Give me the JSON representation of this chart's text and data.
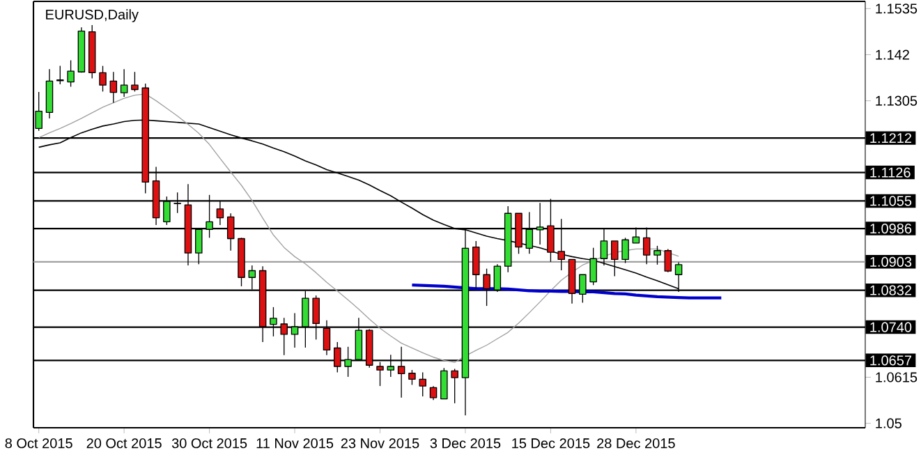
{
  "chart_data": {
    "type": "candlestick",
    "title": "EURUSD,Daily",
    "categories": [
      "8 Oct 2015",
      null,
      null,
      null,
      null,
      null,
      null,
      null,
      "20 Oct 2015",
      null,
      null,
      null,
      null,
      null,
      null,
      null,
      "30 Oct 2015",
      null,
      null,
      null,
      null,
      null,
      null,
      null,
      "11 Nov 2015",
      null,
      null,
      null,
      null,
      null,
      null,
      null,
      "23 Nov 2015",
      null,
      null,
      null,
      null,
      null,
      null,
      null,
      "3 Dec 2015",
      null,
      null,
      null,
      null,
      null,
      null,
      null,
      "15 Dec 2015",
      null,
      null,
      null,
      null,
      null,
      null,
      null,
      "28 Dec 2015",
      null,
      null,
      null,
      null,
      null,
      null,
      null,
      null,
      null,
      null,
      null,
      null,
      null,
      null,
      null,
      null,
      null,
      null,
      null,
      null,
      null
    ],
    "ohlc": [
      [
        1.1236,
        1.1327,
        1.123,
        1.1279
      ],
      [
        1.1276,
        1.1384,
        1.1261,
        1.1354
      ],
      [
        1.1355,
        1.1392,
        1.1346,
        1.1357
      ],
      [
        1.1352,
        1.1406,
        1.134,
        1.1379
      ],
      [
        1.1377,
        1.1488,
        1.1375,
        1.1479
      ],
      [
        1.1477,
        1.1494,
        1.1361,
        1.1375
      ],
      [
        1.1375,
        1.1392,
        1.1328,
        1.1344
      ],
      [
        1.1354,
        1.1377,
        1.13,
        1.1326
      ],
      [
        1.1325,
        1.1384,
        1.1315,
        1.1344
      ],
      [
        1.1344,
        1.1377,
        1.1328,
        1.1333
      ],
      [
        1.1337,
        1.1348,
        1.1074,
        1.1102
      ],
      [
        1.1105,
        1.114,
        1.0995,
        1.1013
      ],
      [
        1.1003,
        1.1066,
        1.0995,
        1.1054
      ],
      [
        1.1048,
        1.1076,
        1.1025,
        1.1049
      ],
      [
        1.1045,
        1.1097,
        1.0894,
        1.0925
      ],
      [
        1.0925,
        1.0984,
        1.0897,
        1.0984
      ],
      [
        1.0984,
        1.107,
        1.0963,
        1.1003
      ],
      [
        1.1035,
        1.1054,
        1.0995,
        1.1013
      ],
      [
        1.1015,
        1.1024,
        1.0931,
        1.0961
      ],
      [
        1.0961,
        1.0963,
        1.0842,
        1.0864
      ],
      [
        1.0864,
        1.0894,
        1.0834,
        1.0881
      ],
      [
        1.0881,
        1.0892,
        1.0703,
        1.0741
      ],
      [
        1.0747,
        1.079,
        1.0717,
        1.0762
      ],
      [
        1.0748,
        1.0763,
        1.067,
        1.0722
      ],
      [
        1.0722,
        1.0775,
        1.0689,
        1.0741
      ],
      [
        1.0741,
        1.083,
        1.0689,
        1.0812
      ],
      [
        1.0812,
        1.0819,
        1.0709,
        1.0749
      ],
      [
        1.0737,
        1.0757,
        1.067,
        1.0683
      ],
      [
        1.0688,
        1.0703,
        1.0627,
        1.0642
      ],
      [
        1.0642,
        1.0691,
        1.0616,
        1.0659
      ],
      [
        1.0659,
        1.0763,
        1.0656,
        1.0732
      ],
      [
        1.0732,
        1.0735,
        1.0639,
        1.0645
      ],
      [
        1.0642,
        1.0653,
        1.0593,
        1.0633
      ],
      [
        1.0633,
        1.0671,
        1.0616,
        1.0642
      ],
      [
        1.0642,
        1.0691,
        1.0564,
        1.0624
      ],
      [
        1.0625,
        1.0633,
        1.0596,
        1.061
      ],
      [
        1.061,
        1.0627,
        1.0567,
        1.0593
      ],
      [
        1.0589,
        1.0593,
        1.0558,
        1.0564
      ],
      [
        1.0561,
        1.0638,
        1.0561,
        1.0631
      ],
      [
        1.0631,
        1.0636,
        1.055,
        1.0614
      ],
      [
        1.0614,
        1.0984,
        1.052,
        1.0937
      ],
      [
        1.094,
        1.0955,
        1.0836,
        1.0871
      ],
      [
        1.0871,
        1.0886,
        1.0793,
        1.0836
      ],
      [
        1.0833,
        1.0897,
        1.0828,
        1.0892
      ],
      [
        1.0892,
        1.1042,
        1.0877,
        1.1024
      ],
      [
        1.1024,
        1.1024,
        1.0923,
        1.094
      ],
      [
        1.0937,
        1.1027,
        1.0923,
        1.0984
      ],
      [
        1.0983,
        1.105,
        1.0946,
        1.099
      ],
      [
        1.0993,
        1.106,
        1.0903,
        1.0927
      ],
      [
        1.0929,
        1.101,
        1.0882,
        1.0909
      ],
      [
        1.0909,
        1.0909,
        1.0799,
        1.0824
      ],
      [
        1.0822,
        1.0871,
        1.0801,
        1.0871
      ],
      [
        1.0853,
        1.0938,
        1.0845,
        1.0911
      ],
      [
        1.0911,
        1.0987,
        1.0894,
        1.0955
      ],
      [
        1.0955,
        1.0955,
        1.0867,
        1.0909
      ],
      [
        1.0909,
        1.0963,
        1.09,
        1.0958
      ],
      [
        1.095,
        1.0989,
        1.095,
        1.0965
      ],
      [
        1.0963,
        1.0989,
        1.0897,
        1.092
      ],
      [
        1.092,
        1.0943,
        1.0896,
        1.0931
      ],
      [
        1.0931,
        1.0935,
        1.0877,
        1.088
      ],
      [
        1.0871,
        1.0902,
        1.0828,
        1.0896
      ],
      null,
      null,
      null,
      null,
      null,
      null,
      null,
      null,
      null,
      null,
      null,
      null,
      null,
      null,
      null,
      null,
      null
    ],
    "colors": [
      "#33dd33",
      "#33dd33",
      "#000000",
      "#33dd33",
      "#33dd33",
      "#dd1111",
      "#dd1111",
      "#dd1111",
      "#33dd33",
      "#dd1111",
      "#dd1111",
      "#dd1111",
      "#33dd33",
      "#000000",
      "#dd1111",
      "#33dd33",
      "#33dd33",
      "#dd1111",
      "#dd1111",
      "#dd1111",
      "#33dd33",
      "#dd1111",
      "#33dd33",
      "#dd1111",
      "#33dd33",
      "#33dd33",
      "#dd1111",
      "#dd1111",
      "#dd1111",
      "#33dd33",
      "#33dd33",
      "#dd1111",
      "#dd1111",
      "#33dd33",
      "#dd1111",
      "#dd1111",
      "#dd1111",
      "#dd1111",
      "#33dd33",
      "#dd1111",
      "#33dd33",
      "#dd1111",
      "#dd1111",
      "#33dd33",
      "#33dd33",
      "#dd1111",
      "#33dd33",
      "#33dd33",
      "#dd1111",
      "#dd1111",
      "#dd1111",
      "#33dd33",
      "#33dd33",
      "#33dd33",
      "#dd1111",
      "#33dd33",
      "#33dd33",
      "#dd1111",
      "#33dd33",
      "#dd1111",
      "#33dd33",
      null,
      null,
      null,
      null,
      null,
      null,
      null,
      null,
      null,
      null,
      null,
      null,
      null,
      null,
      null,
      null,
      null
    ],
    "series": [
      {
        "type": "line",
        "color": "#000000",
        "values": [
          1.1189,
          1.1195,
          1.12,
          1.1213,
          1.1225,
          1.1234,
          1.1242,
          1.1247,
          1.1253,
          1.1256,
          1.1257,
          1.1255,
          1.1253,
          1.1251,
          1.1249,
          1.1247,
          1.1238,
          1.1229,
          1.122,
          1.1212,
          1.1205,
          1.1197,
          1.1187,
          1.1178,
          1.1167,
          1.1155,
          1.1145,
          1.1133,
          1.1125,
          1.1116,
          1.1107,
          1.1095,
          1.1081,
          1.1068,
          1.1052,
          1.1037,
          1.1021,
          1.1007,
          1.0996,
          1.0986,
          1.0983,
          1.0975,
          1.0967,
          1.0961,
          1.0956,
          1.095,
          1.0944,
          1.0938,
          1.093,
          1.0922,
          1.0916,
          1.0911,
          1.0907,
          1.0899,
          1.0891,
          1.0883,
          1.0875,
          1.0865,
          1.0856,
          1.0846,
          1.0836,
          null,
          null,
          null,
          null,
          null,
          null,
          null,
          null,
          null,
          null,
          null,
          null,
          null,
          null,
          null,
          null,
          null
        ]
      },
      {
        "type": "line",
        "color": "#a0a0a0",
        "values": [
          1.1213,
          1.1225,
          1.1236,
          1.1248,
          1.1261,
          1.1275,
          1.1289,
          1.13,
          1.1311,
          1.1319,
          1.1322,
          1.1305,
          1.1286,
          1.1267,
          1.1246,
          1.1224,
          1.1196,
          1.1161,
          1.1127,
          1.1094,
          1.1056,
          1.1012,
          1.097,
          1.0939,
          1.0916,
          1.0898,
          1.0876,
          1.0852,
          1.083,
          1.0808,
          1.0785,
          1.076,
          1.0737,
          1.0718,
          1.07,
          1.0688,
          1.0676,
          1.0665,
          1.0657,
          1.0652,
          1.0668,
          1.0682,
          1.0695,
          1.0711,
          1.0727,
          1.075,
          1.0776,
          1.0803,
          1.0831,
          1.0857,
          1.0877,
          1.0895,
          1.0906,
          1.0917,
          1.0926,
          1.0931,
          1.0935,
          1.0935,
          1.0935,
          1.0926,
          1.0917,
          null,
          null,
          null,
          null,
          null,
          null,
          null,
          null,
          null,
          null,
          null,
          null,
          null,
          null,
          null,
          null,
          null
        ]
      },
      {
        "type": "line",
        "color": "#0000cc",
        "values": [
          null,
          null,
          null,
          null,
          null,
          null,
          null,
          null,
          null,
          null,
          null,
          null,
          null,
          null,
          null,
          null,
          null,
          null,
          null,
          null,
          null,
          null,
          null,
          null,
          null,
          null,
          null,
          null,
          null,
          null,
          null,
          null,
          null,
          null,
          null,
          1.0845,
          1.0844,
          1.0843,
          1.0842,
          1.084,
          1.0838,
          1.0836,
          1.0836,
          1.0836,
          1.0835,
          1.0833,
          1.0831,
          1.083,
          1.083,
          1.0829,
          1.0829,
          1.0828,
          1.0828,
          1.0826,
          1.0824,
          1.0823,
          1.082,
          1.0818,
          1.0816,
          1.0815,
          1.0814,
          1.0813,
          1.0813,
          1.0813,
          1.0813,
          null,
          null,
          null,
          null,
          null,
          null,
          null,
          null,
          null,
          null,
          null,
          null,
          null
        ]
      }
    ],
    "ylim": [
      1.0489,
      1.1553
    ],
    "yticks": [
      1.1535,
      1.142,
      1.1305,
      1.0615,
      1.05
    ],
    "ref_lines": [
      {
        "axis": "y",
        "value": 1.1212,
        "label": "1.1212",
        "color": "#000000"
      },
      {
        "axis": "y",
        "value": 1.1126,
        "label": "1.1126",
        "color": "#000000"
      },
      {
        "axis": "y",
        "value": 1.1055,
        "label": "1.1055",
        "color": "#000000"
      },
      {
        "axis": "y",
        "value": 1.0986,
        "label": "1.0986",
        "color": "#000000"
      },
      {
        "axis": "y",
        "value": 1.0903,
        "label": "1.0903",
        "color": "#a0a0a0"
      },
      {
        "axis": "y",
        "value": 1.0832,
        "label": "1.0832",
        "color": "#000000"
      },
      {
        "axis": "y",
        "value": 1.074,
        "label": "1.0740",
        "color": "#000000"
      },
      {
        "axis": "y",
        "value": 1.0657,
        "label": "1.0657",
        "color": "#000000"
      }
    ],
    "grid": false
  }
}
